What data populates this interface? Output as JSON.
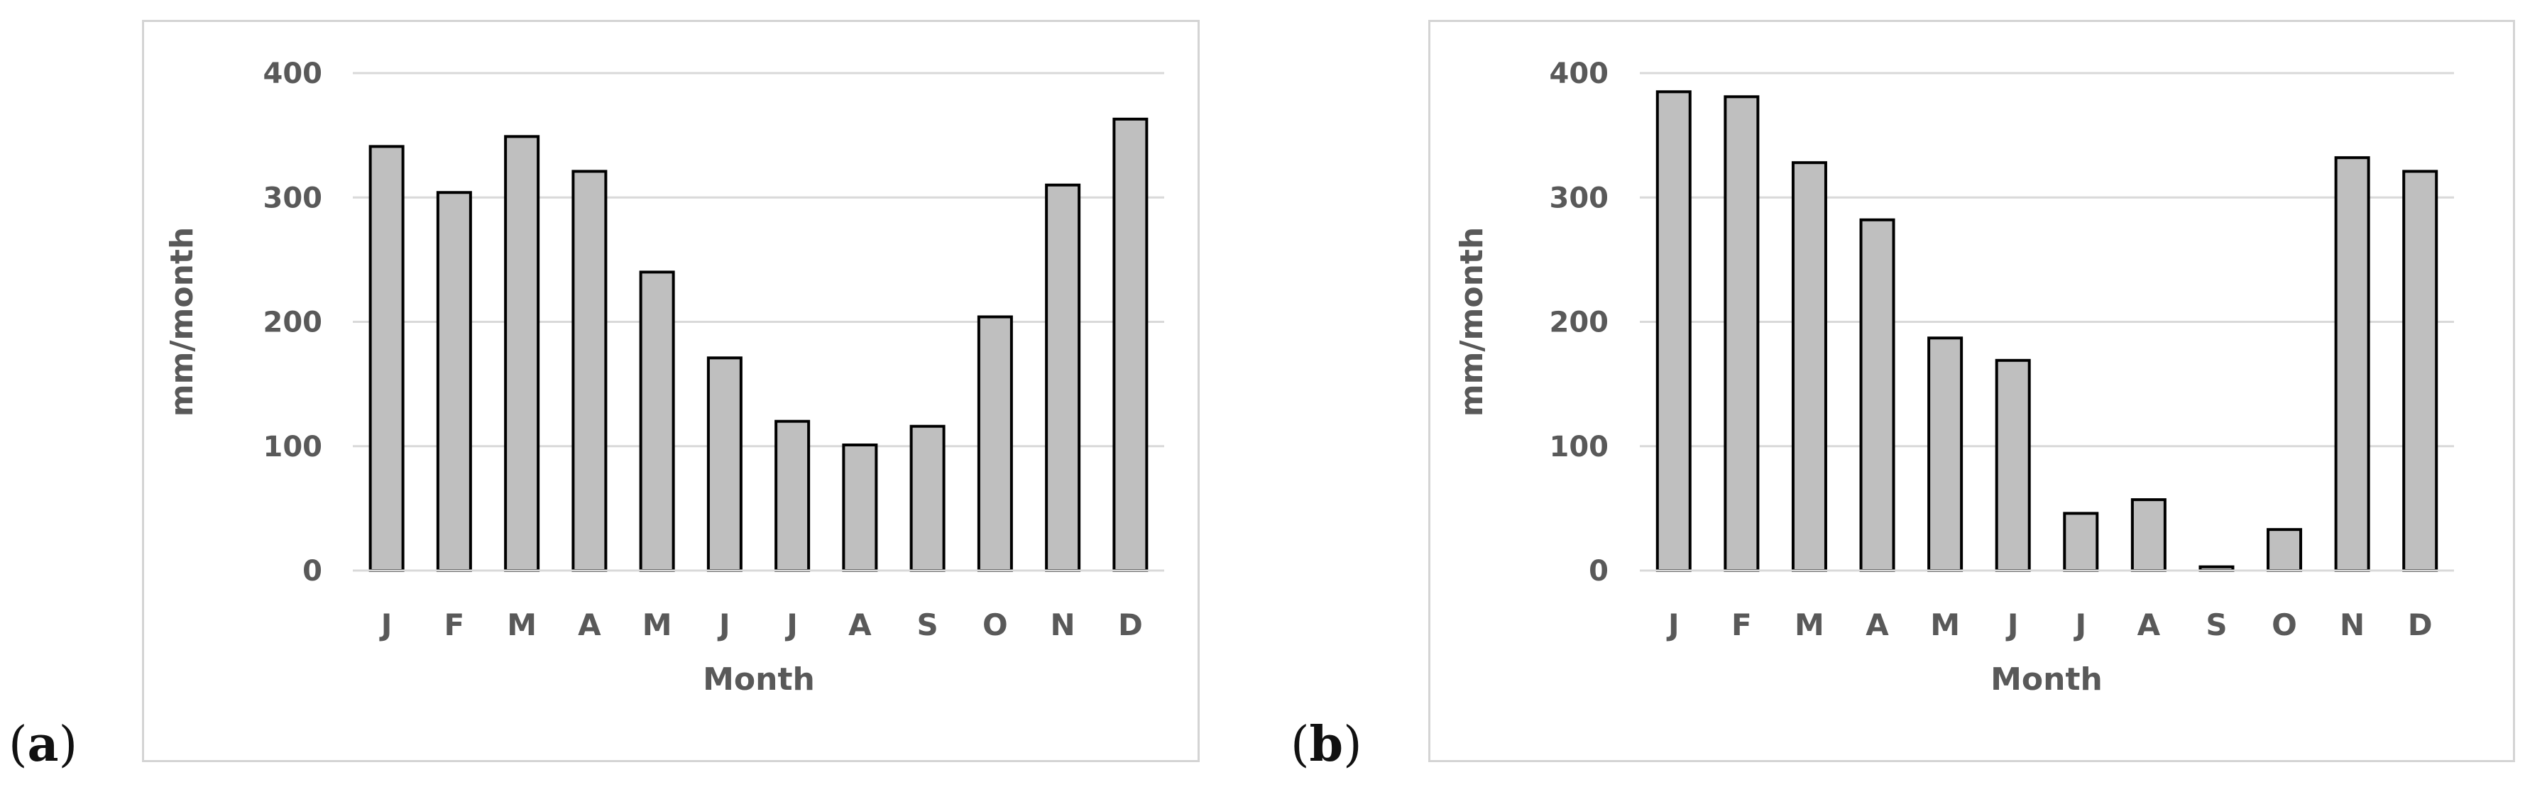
{
  "panels": [
    {
      "id": "a",
      "open": "(",
      "letter": "a",
      "close": ")"
    },
    {
      "id": "b",
      "open": "(",
      "letter": "b",
      "close": ")"
    }
  ],
  "chart_data": [
    {
      "type": "bar",
      "categories": [
        "J",
        "F",
        "M",
        "A",
        "M",
        "J",
        "J",
        "A",
        "S",
        "O",
        "N",
        "D"
      ],
      "values": [
        341,
        304,
        349,
        321,
        240,
        171,
        120,
        101,
        116,
        204,
        310,
        363
      ],
      "title": "",
      "xlabel": "Month",
      "ylabel": "mm/month",
      "ylim": [
        0,
        400
      ],
      "yticks": [
        "0",
        "100",
        "200",
        "300",
        "400"
      ],
      "grid": true,
      "bar_fill": "#bfbfbf",
      "bar_stroke": "#000000",
      "grid_color": "#d9d9d9"
    },
    {
      "type": "bar",
      "categories": [
        "J",
        "F",
        "M",
        "A",
        "M",
        "J",
        "J",
        "A",
        "S",
        "O",
        "N",
        "D"
      ],
      "values": [
        385,
        381,
        328,
        282,
        187,
        169,
        46,
        57,
        3,
        33,
        332,
        321
      ],
      "title": "",
      "xlabel": "Month",
      "ylabel": "mm/month",
      "ylim": [
        0,
        400
      ],
      "yticks": [
        "0",
        "100",
        "200",
        "300",
        "400"
      ],
      "grid": true,
      "bar_fill": "#bfbfbf",
      "bar_stroke": "#000000",
      "grid_color": "#d9d9d9"
    }
  ]
}
